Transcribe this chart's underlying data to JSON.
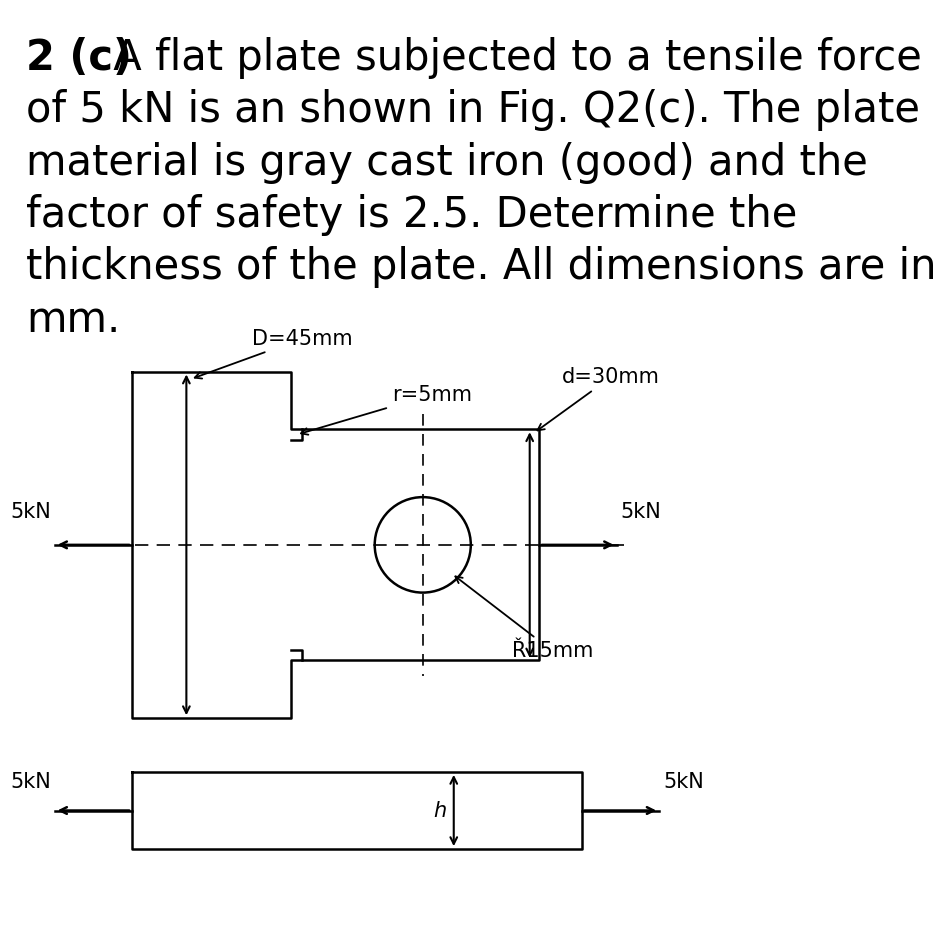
{
  "title_bold": "2 (c)",
  "title_rest": " A flat plate subjected to a tensile force\nof 5 kN is an shown in Fig. Q2(c). The plate\nmaterial is gray cast iron (good) and the\nfactor of safety is 2.5. Determine the\nthickness of the plate. All dimensions are in\nmm.",
  "label_D": "D=45mm",
  "label_r": "r=5mm",
  "label_d": "d=30mm",
  "label_hole": "Ř15mm",
  "label_force": "5kN",
  "label_h": "h",
  "bg_color": "#ffffff",
  "line_color": "#000000",
  "text_color": "#000000",
  "title_fontsize": 30,
  "label_fontsize": 15,
  "lw": 1.8
}
